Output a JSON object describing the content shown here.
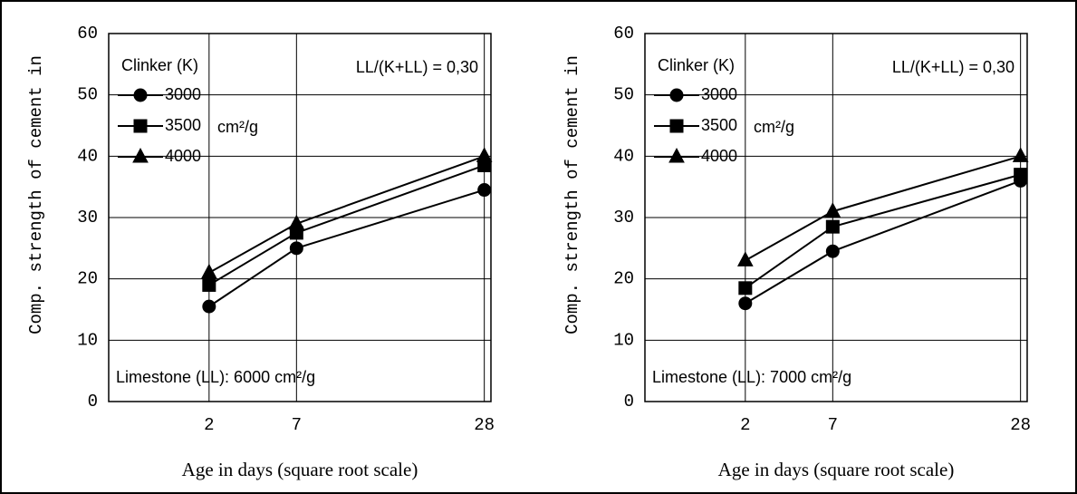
{
  "chart_data": [
    {
      "type": "line",
      "xscale": "sqrt",
      "ylabel": "Comp. strength of cement in",
      "xlabel": "Age in days (square root scale)",
      "legend_title": "Clinker (K)",
      "legend_unit": "cm²/g",
      "annotations": [
        "LL/(K+LL) = 0,30",
        "Limestone (LL): 6000 cm²/g"
      ],
      "x": [
        2,
        7,
        28
      ],
      "xlim": [
        0,
        29
      ],
      "xticks": [
        2,
        7,
        28
      ],
      "ylim": [
        0,
        60
      ],
      "yticks": [
        0,
        10,
        20,
        30,
        40,
        50,
        60
      ],
      "grid": true,
      "series": [
        {
          "name": "3000",
          "color": "#000000",
          "marker": "circle",
          "values": [
            15.5,
            25,
            34.5
          ]
        },
        {
          "name": "3500",
          "color": "#000000",
          "marker": "square",
          "values": [
            19,
            27.5,
            38.5
          ]
        },
        {
          "name": "4000",
          "color": "#000000",
          "marker": "triangle",
          "values": [
            21,
            29,
            40
          ]
        }
      ]
    },
    {
      "type": "line",
      "xscale": "sqrt",
      "ylabel": "Comp. strength of cement in",
      "xlabel": "Age in days (square root scale)",
      "legend_title": "Clinker (K)",
      "legend_unit": "cm²/g",
      "annotations": [
        "LL/(K+LL) = 0,30",
        "Limestone (LL): 7000 cm²/g"
      ],
      "x": [
        2,
        7,
        28
      ],
      "xlim": [
        0,
        29
      ],
      "xticks": [
        2,
        7,
        28
      ],
      "ylim": [
        0,
        60
      ],
      "yticks": [
        0,
        10,
        20,
        30,
        40,
        50,
        60
      ],
      "grid": true,
      "series": [
        {
          "name": "3000",
          "color": "#000000",
          "marker": "circle",
          "values": [
            16,
            24.5,
            36
          ]
        },
        {
          "name": "3500",
          "color": "#000000",
          "marker": "square",
          "values": [
            18.5,
            28.5,
            37
          ]
        },
        {
          "name": "4000",
          "color": "#000000",
          "marker": "triangle",
          "values": [
            23,
            31,
            40
          ]
        }
      ]
    }
  ]
}
